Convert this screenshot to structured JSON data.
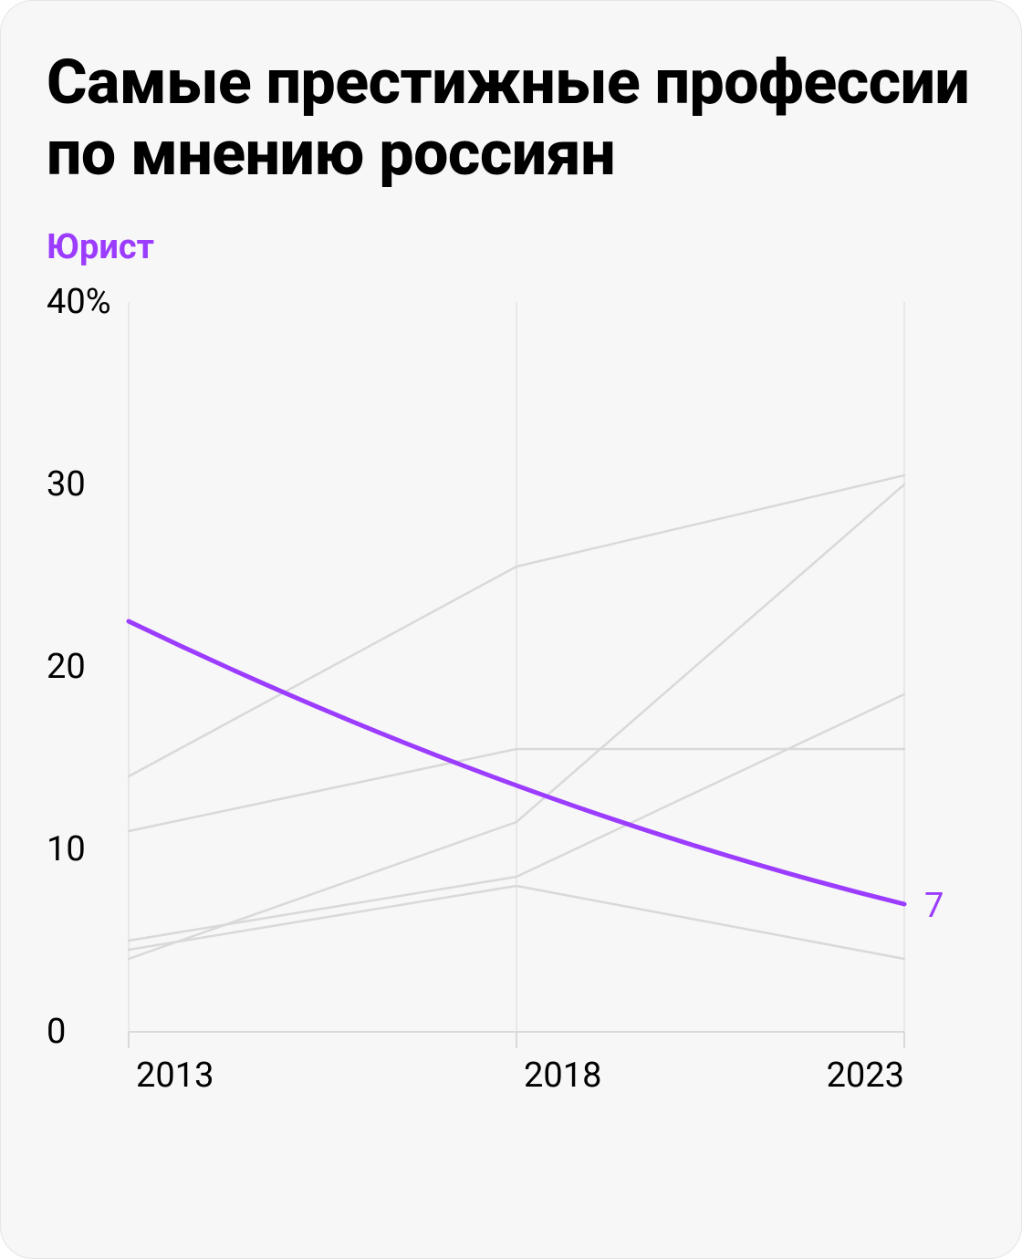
{
  "title": "Самые престижные профессии по мнению россиян",
  "legend_label": "Юрист",
  "legend_color": "#9b3cff",
  "chart": {
    "type": "line",
    "background_color": "#f7f7f7",
    "grid_color": "#d9d9d9",
    "border_color": "#e5e5e5",
    "axis_color": "#d9d9d9",
    "text_color": "#000000",
    "x_categories": [
      "2013",
      "2018",
      "2023"
    ],
    "y_ticks": [
      0,
      10,
      20,
      30,
      40
    ],
    "y_tick_labels": [
      "0",
      "10",
      "20",
      "30",
      "40%"
    ],
    "ylim": [
      0,
      40
    ],
    "label_fontsize": 38,
    "line_width_bg": 2.5,
    "line_width_hl": 5,
    "highlight_series": {
      "name": "Юрист",
      "color": "#9b3cff",
      "values": [
        22.5,
        13.5,
        7
      ],
      "end_label": "7"
    },
    "background_series": [
      {
        "values": [
          14,
          25.5,
          30.5
        ],
        "color": "#d9d9d9"
      },
      {
        "values": [
          11,
          15.5,
          15.5
        ],
        "color": "#d9d9d9"
      },
      {
        "values": [
          4,
          11.5,
          30
        ],
        "color": "#d9d9d9"
      },
      {
        "values": [
          5,
          8.5,
          18.5
        ],
        "color": "#d9d9d9"
      },
      {
        "values": [
          4.5,
          8,
          4
        ],
        "color": "#d9d9d9"
      }
    ]
  }
}
